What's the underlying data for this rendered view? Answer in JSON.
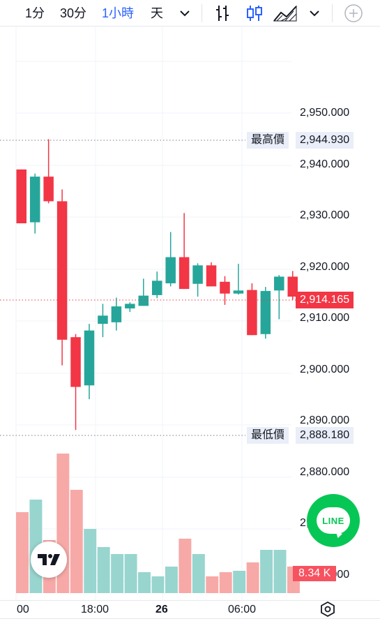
{
  "toolbar": {
    "intervals": [
      {
        "label": "1分",
        "active": false
      },
      {
        "label": "30分",
        "active": false
      },
      {
        "label": "1小時",
        "active": true
      },
      {
        "label": "天",
        "active": false
      }
    ]
  },
  "colors": {
    "up": "#26a69a",
    "down": "#f23645",
    "vol_up": "#98d5cf",
    "vol_down": "#f7a9a7",
    "accent": "#2962ff"
  },
  "price_axis": {
    "labels": [
      "2,950.000",
      "2,940.000",
      "2,930.000",
      "2,920.000",
      "2,910.000",
      "2,900.000",
      "2,890.000",
      "2,880.000",
      "2,870.000",
      "2,860.000"
    ]
  },
  "high": {
    "tag": "最高價",
    "value": "2,944.930"
  },
  "low": {
    "tag": "最低價",
    "value": "2,888.180"
  },
  "current": {
    "value": "2,914.165"
  },
  "volume": {
    "value": "8.34 K"
  },
  "time_axis": {
    "labels": [
      "00",
      "18:00",
      "26",
      "06:00"
    ]
  },
  "chart_data": {
    "type": "candlestick",
    "candles": [
      {
        "o": 2939.0,
        "h": 2939.0,
        "l": 2928.5,
        "c": 2928.5
      },
      {
        "o": 2928.7,
        "h": 2938.2,
        "l": 2926.5,
        "c": 2937.6
      },
      {
        "o": 2937.6,
        "h": 2944.9,
        "l": 2932.4,
        "c": 2932.8
      },
      {
        "o": 2932.8,
        "h": 2935.1,
        "l": 2900.8,
        "c": 2905.8
      },
      {
        "o": 2906.3,
        "h": 2906.9,
        "l": 2888.2,
        "c": 2896.6
      },
      {
        "o": 2896.9,
        "h": 2908.9,
        "l": 2894.2,
        "c": 2907.6
      },
      {
        "o": 2908.9,
        "h": 2912.8,
        "l": 2906.3,
        "c": 2910.5
      },
      {
        "o": 2909.2,
        "h": 2914.0,
        "l": 2907.6,
        "c": 2912.3
      },
      {
        "o": 2911.9,
        "h": 2913.1,
        "l": 2911.2,
        "c": 2912.8
      },
      {
        "o": 2912.4,
        "h": 2917.7,
        "l": 2912.4,
        "c": 2914.4
      },
      {
        "o": 2914.5,
        "h": 2919.1,
        "l": 2913.9,
        "c": 2917.3
      },
      {
        "o": 2916.8,
        "h": 2926.8,
        "l": 2916.2,
        "c": 2921.9
      },
      {
        "o": 2921.9,
        "h": 2930.5,
        "l": 2915.7,
        "c": 2915.7
      },
      {
        "o": 2916.7,
        "h": 2920.7,
        "l": 2914.2,
        "c": 2920.3
      },
      {
        "o": 2920.3,
        "h": 2920.9,
        "l": 2916.2,
        "c": 2916.2
      },
      {
        "o": 2917.1,
        "h": 2918.2,
        "l": 2912.6,
        "c": 2914.8
      },
      {
        "o": 2914.8,
        "h": 2920.6,
        "l": 2914.6,
        "c": 2915.4
      },
      {
        "o": 2915.5,
        "h": 2916.8,
        "l": 2906.7,
        "c": 2906.7
      },
      {
        "o": 2906.9,
        "h": 2916.1,
        "l": 2906.0,
        "c": 2915.3
      },
      {
        "o": 2915.4,
        "h": 2918.4,
        "l": 2909.8,
        "c": 2918.1
      },
      {
        "o": 2918.1,
        "h": 2919.2,
        "l": 2913.6,
        "c": 2914.2
      }
    ],
    "volume_relative": [
      0.58,
      0.67,
      0.38,
      1.0,
      0.74,
      0.46,
      0.33,
      0.28,
      0.28,
      0.15,
      0.12,
      0.19,
      0.39,
      0.28,
      0.12,
      0.15,
      0.16,
      0.22,
      0.31,
      0.31,
      0.19
    ],
    "price_range": [
      2858.0,
      2963.0
    ],
    "grid": true
  }
}
